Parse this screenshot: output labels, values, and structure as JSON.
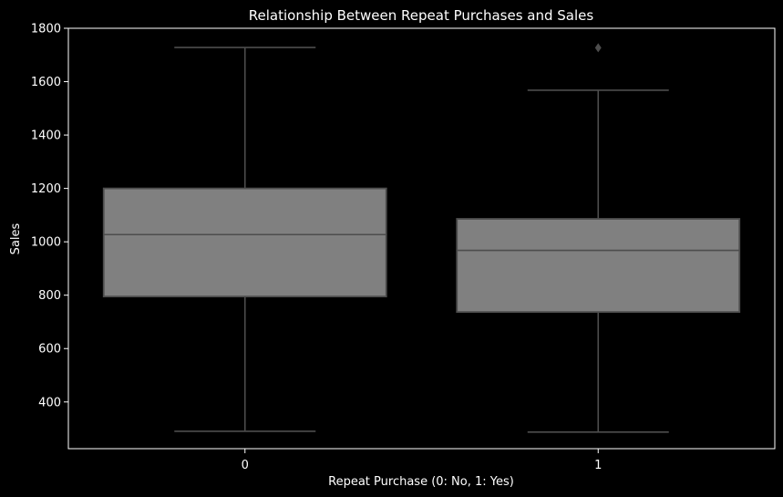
{
  "chart_data": {
    "type": "box",
    "title": "Relationship Between Repeat Purchases and Sales",
    "xlabel": "Repeat Purchase (0: No, 1: Yes)",
    "ylabel": "Sales",
    "categories": [
      "0",
      "1"
    ],
    "ylim": [
      225,
      1800
    ],
    "yticks": [
      400,
      600,
      800,
      1000,
      1200,
      1400,
      1600,
      1800
    ],
    "boxes": [
      {
        "category": "0",
        "whisker_low": 290,
        "q1": 795,
        "median": 1027,
        "q3": 1200,
        "whisker_high": 1728,
        "outliers": []
      },
      {
        "category": "1",
        "whisker_low": 287,
        "q1": 737,
        "median": 968,
        "q3": 1086,
        "whisker_high": 1568,
        "outliers": [
          1727
        ]
      }
    ],
    "colors": {
      "background": "#000000",
      "box_fill": "#808080",
      "box_line": "#4d4d4d",
      "axis": "#ffffff",
      "text": "#ffffff"
    }
  }
}
